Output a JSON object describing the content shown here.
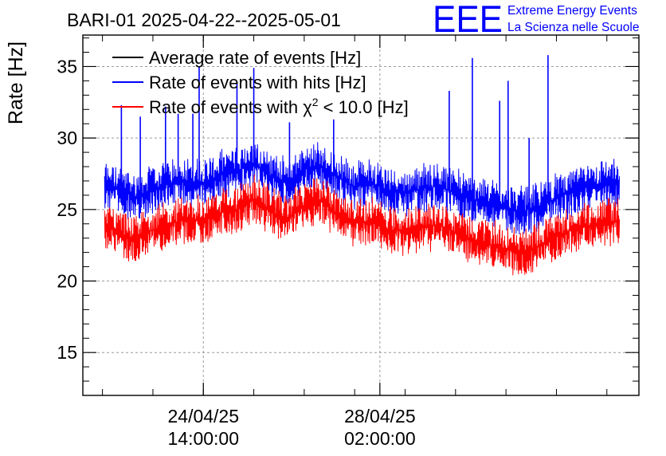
{
  "chart_data": {
    "type": "line",
    "title": "BARI-01 2025-04-22--2025-05-01",
    "ylabel": "Rate [Hz]",
    "xlabel": "",
    "ylim": [
      12,
      37.2
    ],
    "xlim": [
      "2025-04-22 04:40",
      "2025-05-03 05:15"
    ],
    "y_ticks": [
      15,
      20,
      25,
      30,
      35
    ],
    "y_tick_labels": [
      "15",
      "20",
      "25",
      "30",
      "35"
    ],
    "x_tick_labels": [
      {
        "date": "24/04/25",
        "time": "14:00:00",
        "x": "2025-04-24 14:00"
      },
      {
        "date": "28/04/25",
        "time": "02:00:00",
        "x": "2025-04-28 02:00"
      }
    ],
    "grid": true,
    "legend": {
      "placement": "top-left",
      "entries": [
        {
          "name": "Average rate of events [Hz]",
          "color": "#000000"
        },
        {
          "name": "Rate of events with hits [Hz]",
          "color": "#0000ff"
        },
        {
          "name_prefix": "Rate of events with χ",
          "name_sup": "2",
          "name_suffix": " < 10.0 [Hz]",
          "color": "#ff0000"
        }
      ]
    },
    "series": [
      {
        "name": "Rate of events with hits [Hz]",
        "color": "#0000ff",
        "x": [
          "2025-04-22 15:00",
          "2025-04-22 22:00",
          "2025-04-23 06:00",
          "2025-04-23 14:00",
          "2025-04-23 22:00",
          "2025-04-24 06:00",
          "2025-04-24 14:00",
          "2025-04-24 22:00",
          "2025-04-25 06:00",
          "2025-04-25 14:00",
          "2025-04-25 22:00",
          "2025-04-26 06:00",
          "2025-04-26 14:00",
          "2025-04-26 22:00",
          "2025-04-27 06:00",
          "2025-04-27 14:00",
          "2025-04-27 22:00",
          "2025-04-28 06:00",
          "2025-04-28 14:00",
          "2025-04-28 22:00",
          "2025-04-29 06:00",
          "2025-04-29 14:00",
          "2025-04-29 22:00",
          "2025-04-30 06:00",
          "2025-04-30 14:00",
          "2025-04-30 22:00",
          "2025-05-01 06:00",
          "2025-05-01 14:00",
          "2025-05-01 22:00",
          "2025-05-02 06:00",
          "2025-05-02 14:00",
          "2025-05-02 20:00"
        ],
        "values": [
          26.8,
          26.3,
          25.9,
          26.4,
          26.8,
          27.0,
          26.9,
          27.4,
          27.7,
          28.2,
          27.3,
          26.9,
          27.8,
          28.0,
          27.2,
          26.6,
          26.9,
          26.3,
          26.1,
          26.5,
          26.6,
          26.2,
          25.7,
          25.4,
          25.1,
          24.9,
          25.2,
          25.8,
          26.3,
          26.6,
          26.8,
          26.9
        ]
      },
      {
        "name": "",
        "color": "#ff0000",
        "x": [
          "2025-04-22 15:00",
          "2025-04-22 22:00",
          "2025-04-23 06:00",
          "2025-04-23 14:00",
          "2025-04-23 22:00",
          "2025-04-24 06:00",
          "2025-04-24 14:00",
          "2025-04-24 22:00",
          "2025-04-25 06:00",
          "2025-04-25 14:00",
          "2025-04-25 22:00",
          "2025-04-26 06:00",
          "2025-04-26 14:00",
          "2025-04-26 22:00",
          "2025-04-27 06:00",
          "2025-04-27 14:00",
          "2025-04-27 22:00",
          "2025-04-28 06:00",
          "2025-04-28 14:00",
          "2025-04-28 22:00",
          "2025-04-29 06:00",
          "2025-04-29 14:00",
          "2025-04-29 22:00",
          "2025-04-30 06:00",
          "2025-04-30 14:00",
          "2025-04-30 22:00",
          "2025-05-01 06:00",
          "2025-05-01 14:00",
          "2025-05-01 22:00",
          "2025-05-02 06:00",
          "2025-05-02 14:00",
          "2025-05-02 20:00"
        ],
        "values": [
          24.1,
          23.4,
          22.9,
          23.6,
          24.0,
          24.3,
          24.2,
          24.8,
          25.0,
          25.7,
          24.9,
          24.3,
          25.3,
          25.6,
          24.7,
          24.0,
          24.2,
          23.6,
          23.5,
          23.8,
          23.9,
          23.4,
          22.9,
          22.6,
          22.2,
          21.9,
          22.4,
          23.1,
          23.6,
          23.9,
          24.1,
          24.2
        ]
      }
    ],
    "spikes": [
      {
        "x": "2025-04-22 23:00",
        "value": 32.3
      },
      {
        "x": "2025-04-23 08:00",
        "value": 31.5
      },
      {
        "x": "2025-04-23 20:00",
        "value": 32.2
      },
      {
        "x": "2025-04-24 02:00",
        "value": 31.7
      },
      {
        "x": "2025-04-24 09:00",
        "value": 31.7
      },
      {
        "x": "2025-04-24 12:00",
        "value": 35.0
      },
      {
        "x": "2025-04-25 06:00",
        "value": 33.8
      },
      {
        "x": "2025-04-25 14:00",
        "value": 34.9
      },
      {
        "x": "2025-04-26 07:00",
        "value": 31.1
      },
      {
        "x": "2025-04-27 04:00",
        "value": 31.3
      },
      {
        "x": "2025-04-29 11:00",
        "value": 33.3
      },
      {
        "x": "2025-04-29 22:00",
        "value": 35.6
      },
      {
        "x": "2025-04-30 11:00",
        "value": 32.6
      },
      {
        "x": "2025-04-30 15:00",
        "value": 34.0
      },
      {
        "x": "2025-05-01 01:00",
        "value": 30.0
      },
      {
        "x": "2025-05-01 10:00",
        "value": 35.8
      }
    ]
  },
  "logo": {
    "mark": "EEE",
    "line1": "Extreme Energy Events",
    "line2": "La Scienza nelle Scuole",
    "color": "#0000ff"
  }
}
